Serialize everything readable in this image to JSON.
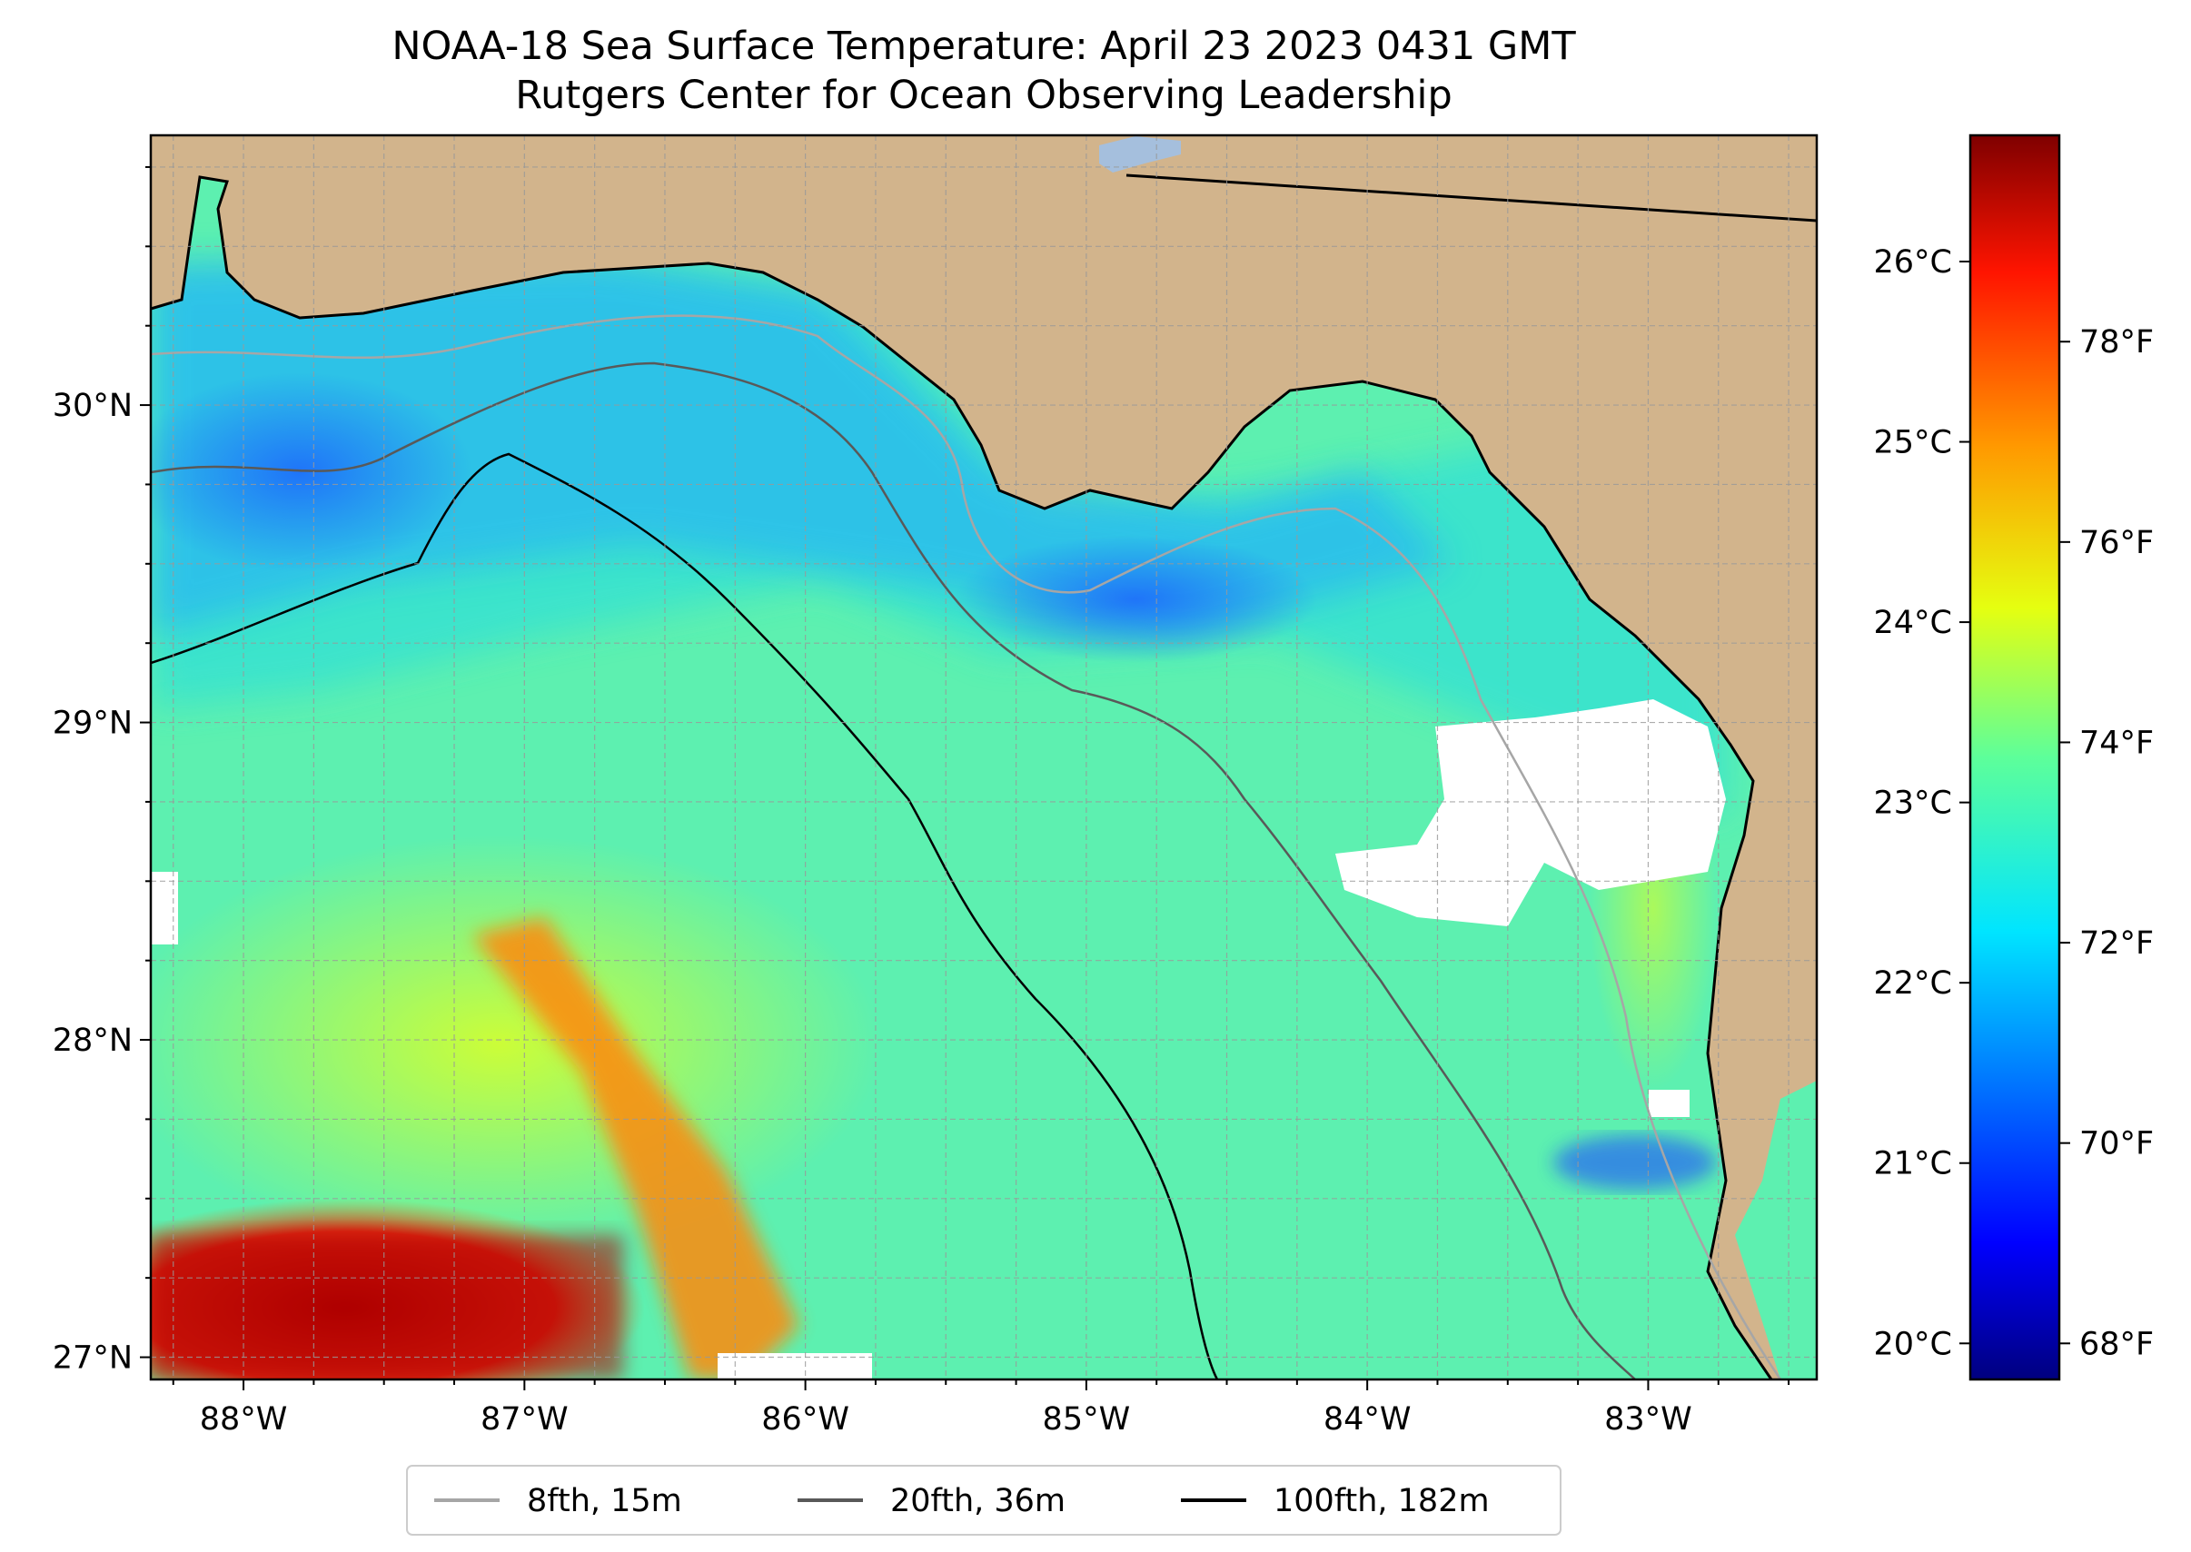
{
  "title": {
    "line1": "NOAA-18 Sea Surface Temperature: April 23 2023 0431 GMT",
    "line2": "Rutgers Center for Ocean Observing Leadership"
  },
  "map": {
    "lon_range": [
      -88.33,
      -82.4
    ],
    "lat_range": [
      26.93,
      30.85
    ],
    "lon_ticks": [
      {
        "value": -88,
        "label": "88°W"
      },
      {
        "value": -87,
        "label": "87°W"
      },
      {
        "value": -86,
        "label": "86°W"
      },
      {
        "value": -85,
        "label": "85°W"
      },
      {
        "value": -84,
        "label": "84°W"
      },
      {
        "value": -83,
        "label": "83°W"
      }
    ],
    "lat_ticks": [
      {
        "value": 30,
        "label": "30°N"
      },
      {
        "value": 29,
        "label": "29°N"
      },
      {
        "value": 28,
        "label": "28°N"
      },
      {
        "value": 27,
        "label": "27°N"
      }
    ],
    "gridlines": "dashed",
    "colors": {
      "land": "#d2b48c",
      "coastline": "#000000",
      "gridline": "#999999"
    }
  },
  "colorbar": {
    "colormap": "jet",
    "celsius_range": [
      19.8,
      26.7
    ],
    "celsius_ticks": [
      {
        "value": 20,
        "label": "20°C"
      },
      {
        "value": 21,
        "label": "21°C"
      },
      {
        "value": 22,
        "label": "22°C"
      },
      {
        "value": 23,
        "label": "23°C"
      },
      {
        "value": 24,
        "label": "24°C"
      },
      {
        "value": 25,
        "label": "25°C"
      },
      {
        "value": 26,
        "label": "26°C"
      }
    ],
    "fahrenheit_ticks": [
      {
        "value": 68,
        "label": "68°F"
      },
      {
        "value": 70,
        "label": "70°F"
      },
      {
        "value": 72,
        "label": "72°F"
      },
      {
        "value": 74,
        "label": "74°F"
      },
      {
        "value": 76,
        "label": "76°F"
      },
      {
        "value": 78,
        "label": "78°F"
      }
    ]
  },
  "legend": {
    "placement": "bottom-center",
    "items": [
      {
        "label": "8fth, 15m",
        "color": "#a6a6a6"
      },
      {
        "label": "20fth, 36m",
        "color": "#595959"
      },
      {
        "label": "100fth, 182m",
        "color": "#000000"
      }
    ]
  }
}
